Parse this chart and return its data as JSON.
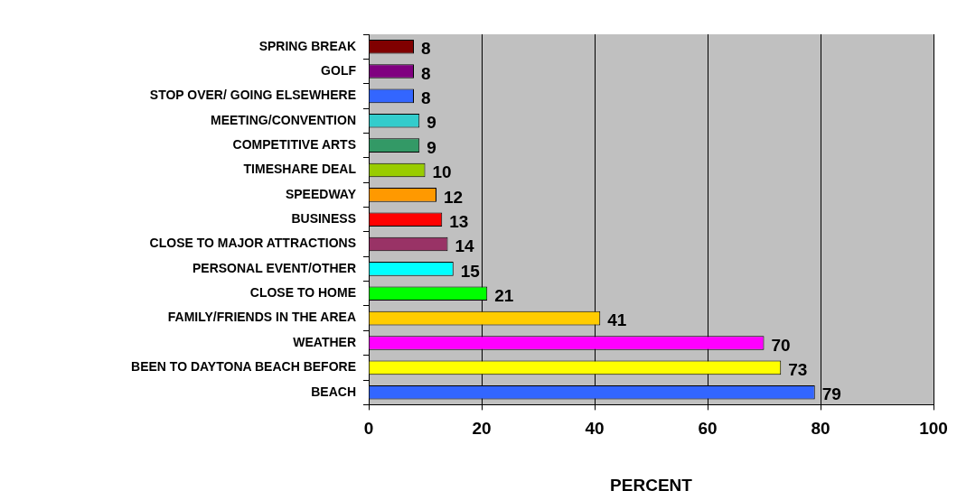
{
  "chart_data": {
    "type": "bar",
    "orientation": "horizontal",
    "xlabel": "PERCENT",
    "categories": [
      "SPRING BREAK",
      "GOLF",
      "STOP OVER/ GOING ELSEWHERE",
      "MEETING/CONVENTION",
      "COMPETITIVE ARTS",
      "TIMESHARE DEAL",
      "SPEEDWAY",
      "BUSINESS",
      "CLOSE TO MAJOR ATTRACTIONS",
      "PERSONAL EVENT/OTHER",
      "CLOSE TO HOME",
      "FAMILY/FRIENDS IN THE AREA",
      "WEATHER",
      "BEEN TO DAYTONA BEACH BEFORE",
      "BEACH"
    ],
    "values": [
      8,
      8,
      8,
      9,
      9,
      10,
      12,
      13,
      14,
      15,
      21,
      41,
      70,
      73,
      79
    ],
    "colors": [
      "#800000",
      "#800080",
      "#3366ff",
      "#33cccc",
      "#339966",
      "#99cc00",
      "#ff9900",
      "#ff0000",
      "#993366",
      "#00ffff",
      "#00ff00",
      "#ffcc00",
      "#ff00ff",
      "#ffff00",
      "#3366ff"
    ],
    "xlim": [
      0,
      100
    ],
    "xticks": [
      0,
      20,
      40,
      60,
      80,
      100
    ],
    "grid": "x",
    "data_labels": true,
    "legend": false
  }
}
